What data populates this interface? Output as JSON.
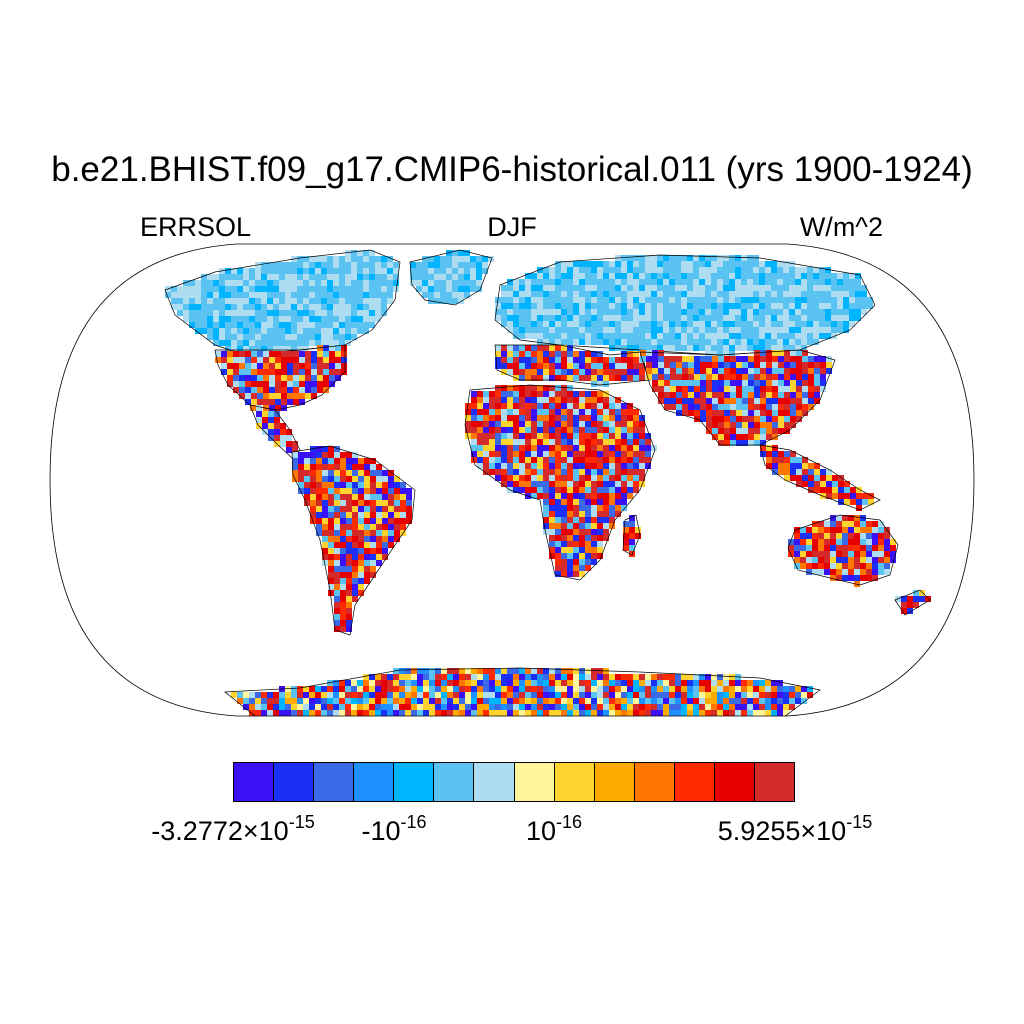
{
  "title": "b.e21.BHIST.f09_g17.CMIP6-historical.011 (yrs 1900-1924)",
  "subtitles": {
    "left": "ERRSOL",
    "center": "DJF",
    "right": "W/m^2"
  },
  "colorbar": {
    "colors": [
      "#3b10f5",
      "#1a30f7",
      "#3a6ae6",
      "#1e90ff",
      "#00b4ff",
      "#5bc3f2",
      "#aedcf0",
      "#fff59a",
      "#ffd42e",
      "#ffaa00",
      "#ff7700",
      "#ff2a00",
      "#e60000",
      "#d42a2a"
    ],
    "labels": [
      {
        "mantissa": "-3.2772",
        "times": "×",
        "base": "10",
        "exp": "-15"
      },
      {
        "mantissa": "-",
        "times": "",
        "base": "10",
        "exp": "-16"
      },
      {
        "mantissa": "",
        "times": "",
        "base": "10",
        "exp": "-16"
      },
      {
        "mantissa": "5.9255",
        "times": "×",
        "base": "10",
        "exp": "-15"
      }
    ]
  },
  "map": {
    "projection": "Robinson",
    "variable": "ERRSOL",
    "season": "DJF",
    "units": "W/m^2",
    "ocean_color": "#ffffff"
  }
}
